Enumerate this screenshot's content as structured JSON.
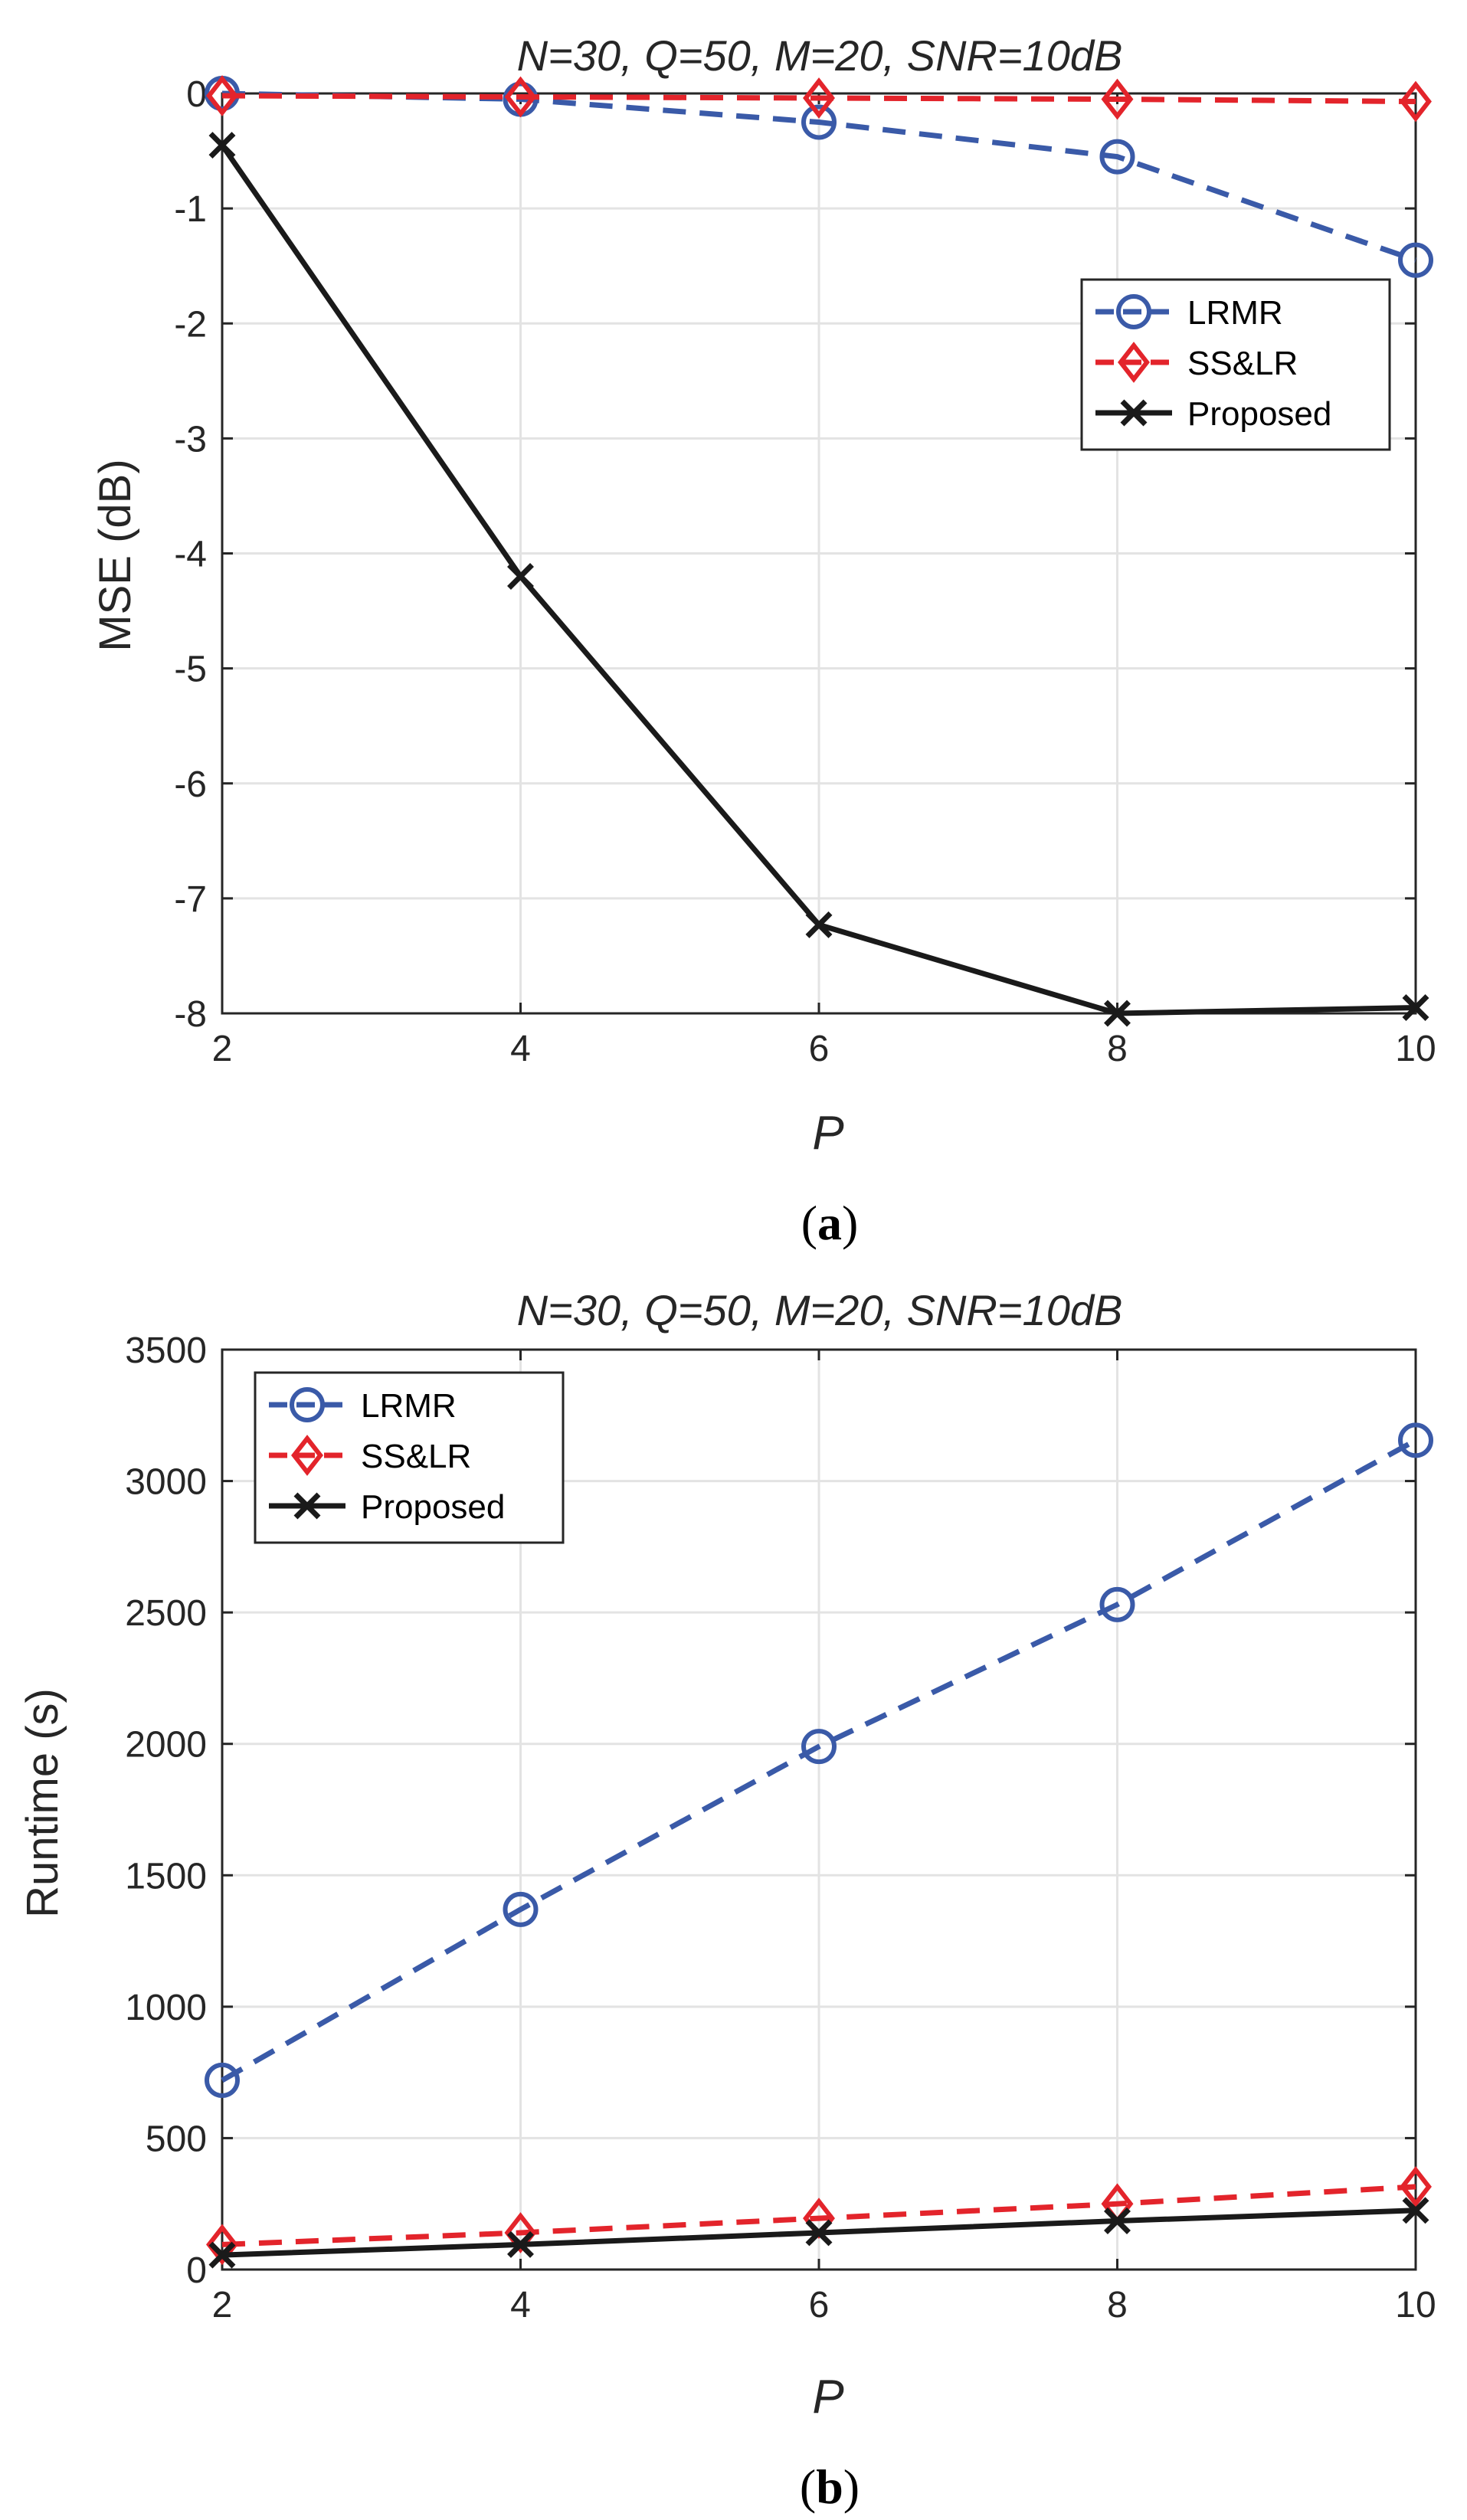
{
  "colors": {
    "lrmr": "#3a5aa8",
    "sslr": "#e3242b",
    "proposed": "#1a1a1a",
    "grid": "#e3e3e3",
    "axis": "#262626"
  },
  "chart_data": [
    {
      "type": "line",
      "caption_open": "(",
      "caption_letter": "a",
      "caption_close": ")",
      "title": "N=30, Q=50, M=20, SNR=10dB",
      "xlabel": "P",
      "ylabel": "MSE (dB)",
      "x": [
        2,
        4,
        6,
        8,
        10
      ],
      "xlim": [
        2,
        10
      ],
      "ylim": [
        -8,
        0
      ],
      "xticks": [
        2,
        4,
        6,
        8,
        10
      ],
      "yticks": [
        0,
        -1,
        -2,
        -3,
        -4,
        -5,
        -6,
        -7,
        -8
      ],
      "grid": true,
      "legend_position": "upper-right",
      "series": [
        {
          "name": "LRMR",
          "color_key": "lrmr",
          "dash": "dashed",
          "marker": "circle",
          "values": [
            0.0,
            -0.05,
            -0.25,
            -0.55,
            -1.45
          ]
        },
        {
          "name": "SS&LR",
          "color_key": "sslr",
          "dash": "dashed",
          "marker": "diamond",
          "values": [
            -0.02,
            -0.03,
            -0.04,
            -0.05,
            -0.07
          ]
        },
        {
          "name": "Proposed",
          "color_key": "proposed",
          "dash": "solid",
          "marker": "x",
          "values": [
            -0.45,
            -4.2,
            -7.23,
            -8.0,
            -7.95
          ]
        }
      ]
    },
    {
      "type": "line",
      "caption_open": "(",
      "caption_letter": "b",
      "caption_close": ")",
      "title": "N=30, Q=50, M=20, SNR=10dB",
      "xlabel": "P",
      "ylabel": "Runtime (s)",
      "x": [
        2,
        4,
        6,
        8,
        10
      ],
      "xlim": [
        2,
        10
      ],
      "ylim": [
        0,
        3500
      ],
      "xticks": [
        2,
        4,
        6,
        8,
        10
      ],
      "yticks": [
        0,
        500,
        1000,
        1500,
        2000,
        2500,
        3000,
        3500
      ],
      "grid": true,
      "legend_position": "upper-left",
      "series": [
        {
          "name": "LRMR",
          "color_key": "lrmr",
          "dash": "dashed",
          "marker": "circle",
          "values": [
            720,
            1370,
            1990,
            2530,
            3155
          ]
        },
        {
          "name": "SS&LR",
          "color_key": "sslr",
          "dash": "dashed",
          "marker": "diamond",
          "values": [
            95,
            140,
            195,
            250,
            315
          ]
        },
        {
          "name": "Proposed",
          "color_key": "proposed",
          "dash": "solid",
          "marker": "x",
          "values": [
            55,
            95,
            140,
            185,
            225
          ]
        }
      ]
    }
  ]
}
